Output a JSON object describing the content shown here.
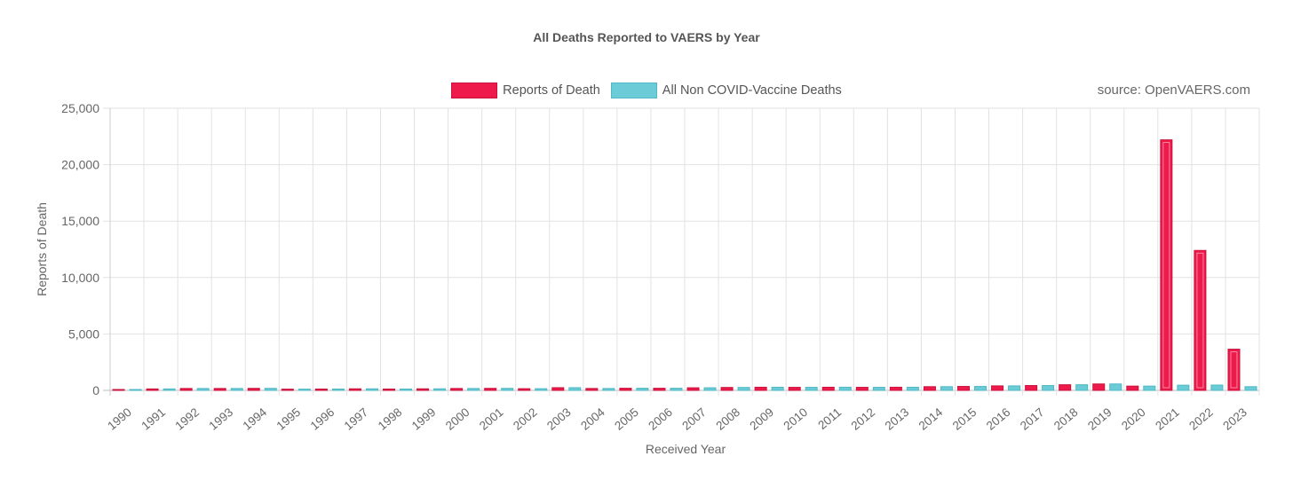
{
  "chart_data": {
    "type": "bar",
    "title": "All Deaths Reported to VAERS by Year",
    "source_note": "source: OpenVAERS.com",
    "xlabel": "Received Year",
    "ylabel": "Reports of Death",
    "ylim": [
      0,
      25000
    ],
    "yticks": [
      0,
      5000,
      10000,
      15000,
      20000,
      25000
    ],
    "ytick_labels": [
      "0",
      "5,000",
      "10,000",
      "15,000",
      "20,000",
      "25,000"
    ],
    "grid": true,
    "legend_position": "top-center",
    "categories": [
      "1990",
      "1991",
      "1992",
      "1993",
      "1994",
      "1995",
      "1996",
      "1997",
      "1998",
      "1999",
      "2000",
      "2001",
      "2002",
      "2003",
      "2004",
      "2005",
      "2006",
      "2007",
      "2008",
      "2009",
      "2010",
      "2011",
      "2012",
      "2013",
      "2014",
      "2015",
      "2016",
      "2017",
      "2018",
      "2019",
      "2020",
      "2021",
      "2022",
      "2023"
    ],
    "series": [
      {
        "name": "Reports of Death",
        "color": "#ee1a4b",
        "values": [
          30,
          130,
          170,
          170,
          180,
          110,
          120,
          140,
          120,
          140,
          170,
          180,
          150,
          240,
          170,
          190,
          190,
          230,
          260,
          280,
          270,
          280,
          270,
          280,
          330,
          350,
          400,
          430,
          500,
          570,
          380,
          22200,
          12400,
          3650
        ]
      },
      {
        "name": "All Non COVID-Vaccine Deaths",
        "color": "#6bcbd7",
        "values": [
          30,
          130,
          170,
          170,
          180,
          110,
          120,
          140,
          120,
          140,
          170,
          180,
          150,
          240,
          170,
          190,
          190,
          230,
          260,
          280,
          270,
          280,
          270,
          280,
          330,
          350,
          400,
          430,
          500,
          570,
          380,
          460,
          470,
          330
        ]
      }
    ]
  }
}
